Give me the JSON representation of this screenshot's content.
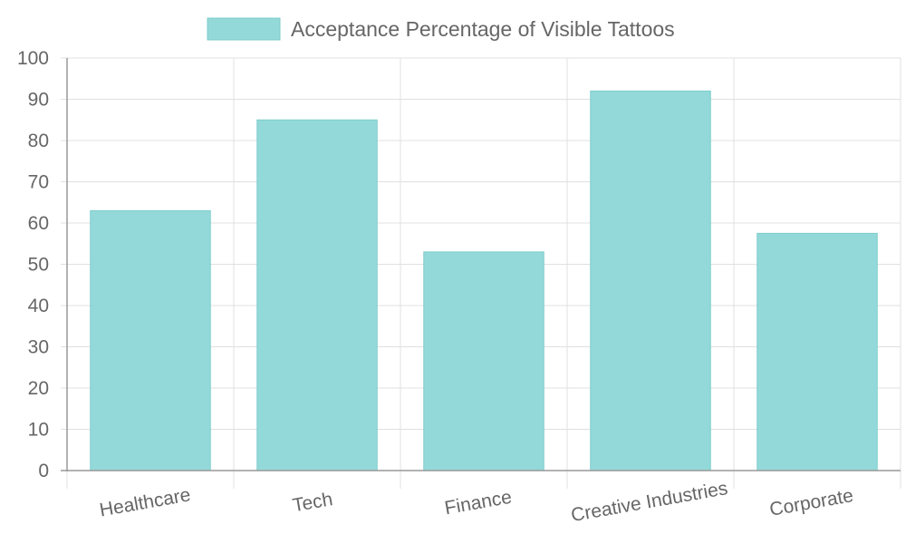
{
  "chart_data": {
    "type": "bar",
    "categories": [
      "Healthcare",
      "Tech",
      "Finance",
      "Creative Industries",
      "Corporate"
    ],
    "series": [
      {
        "name": "Acceptance Percentage of Visible Tattoos",
        "values": [
          63,
          85,
          53,
          92,
          57.5
        ]
      }
    ],
    "ylim": [
      0,
      100
    ],
    "yticks": [
      0,
      10,
      20,
      30,
      40,
      50,
      60,
      70,
      80,
      90,
      100
    ],
    "grid": true,
    "legend_position": "top",
    "bar_fill": "#94d9d9",
    "bar_stroke": "#7ecccc",
    "grid_color": "#e0e0e0",
    "axis_color": "#999999",
    "text_color": "#666666"
  }
}
